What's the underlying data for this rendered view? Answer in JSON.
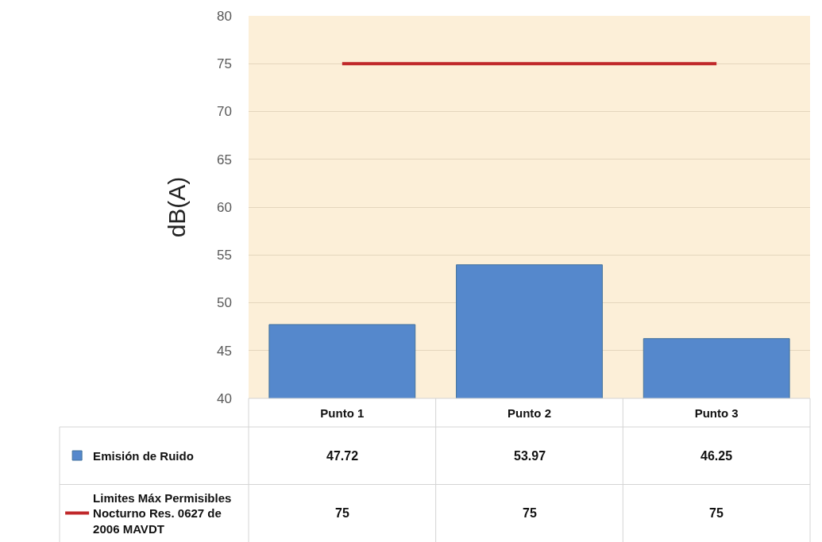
{
  "chart_data": {
    "type": "bar",
    "categories": [
      "Punto 1",
      "Punto 2",
      "Punto 3"
    ],
    "series": [
      {
        "name": "Emisión de Ruido",
        "color": "#5588cc",
        "values": [
          47.72,
          53.97,
          46.25
        ]
      },
      {
        "name": "Limites Máx Permisibles Nocturno Res. 0627 de 2006 MAVDT",
        "type": "line",
        "color": "#c0282a",
        "values": [
          75,
          75,
          75
        ]
      }
    ],
    "ylabel": "dB(A)",
    "ylim": [
      40,
      80
    ],
    "yticks": [
      40,
      45,
      50,
      55,
      60,
      65,
      70,
      75,
      80
    ],
    "grid": "y",
    "legend": "bottom left",
    "line_style": "solid",
    "data_labels": true
  }
}
